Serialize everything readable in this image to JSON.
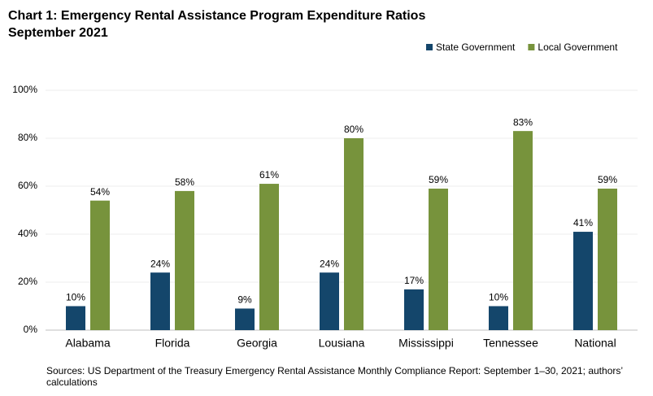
{
  "chart_data": {
    "type": "bar",
    "title": "Chart 1: Emergency Rental Assistance Program Expenditure Ratios",
    "subtitle": "September 2021",
    "categories": [
      "Alabama",
      "Florida",
      "Georgia",
      "Lousiana",
      "Mississippi",
      "Tennessee",
      "National"
    ],
    "series": [
      {
        "name": "State Government",
        "color": "#14466b",
        "values": [
          10,
          24,
          9,
          24,
          17,
          10,
          41
        ],
        "value_labels": [
          "10%",
          "24%",
          "9%",
          "24%",
          "17%",
          "10%",
          "41%"
        ]
      },
      {
        "name": "Local Government",
        "color": "#77933c",
        "values": [
          54,
          58,
          61,
          80,
          59,
          83,
          59
        ],
        "value_labels": [
          "54%",
          "58%",
          "61%",
          "80%",
          "59%",
          "83%",
          "59%"
        ]
      }
    ],
    "ylim": [
      0,
      100
    ],
    "yticks": [
      {
        "value": 0,
        "label": "0%"
      },
      {
        "value": 20,
        "label": "20%"
      },
      {
        "value": 40,
        "label": "40%"
      },
      {
        "value": 60,
        "label": "60%"
      },
      {
        "value": 80,
        "label": "80%"
      },
      {
        "value": 100,
        "label": "100%"
      }
    ],
    "grid": true,
    "legend": "top-right",
    "source": "Sources: US Department of the Treasury Emergency Rental Assistance Monthly Compliance Report: September 1–30, 2021; authors’ calculations"
  }
}
